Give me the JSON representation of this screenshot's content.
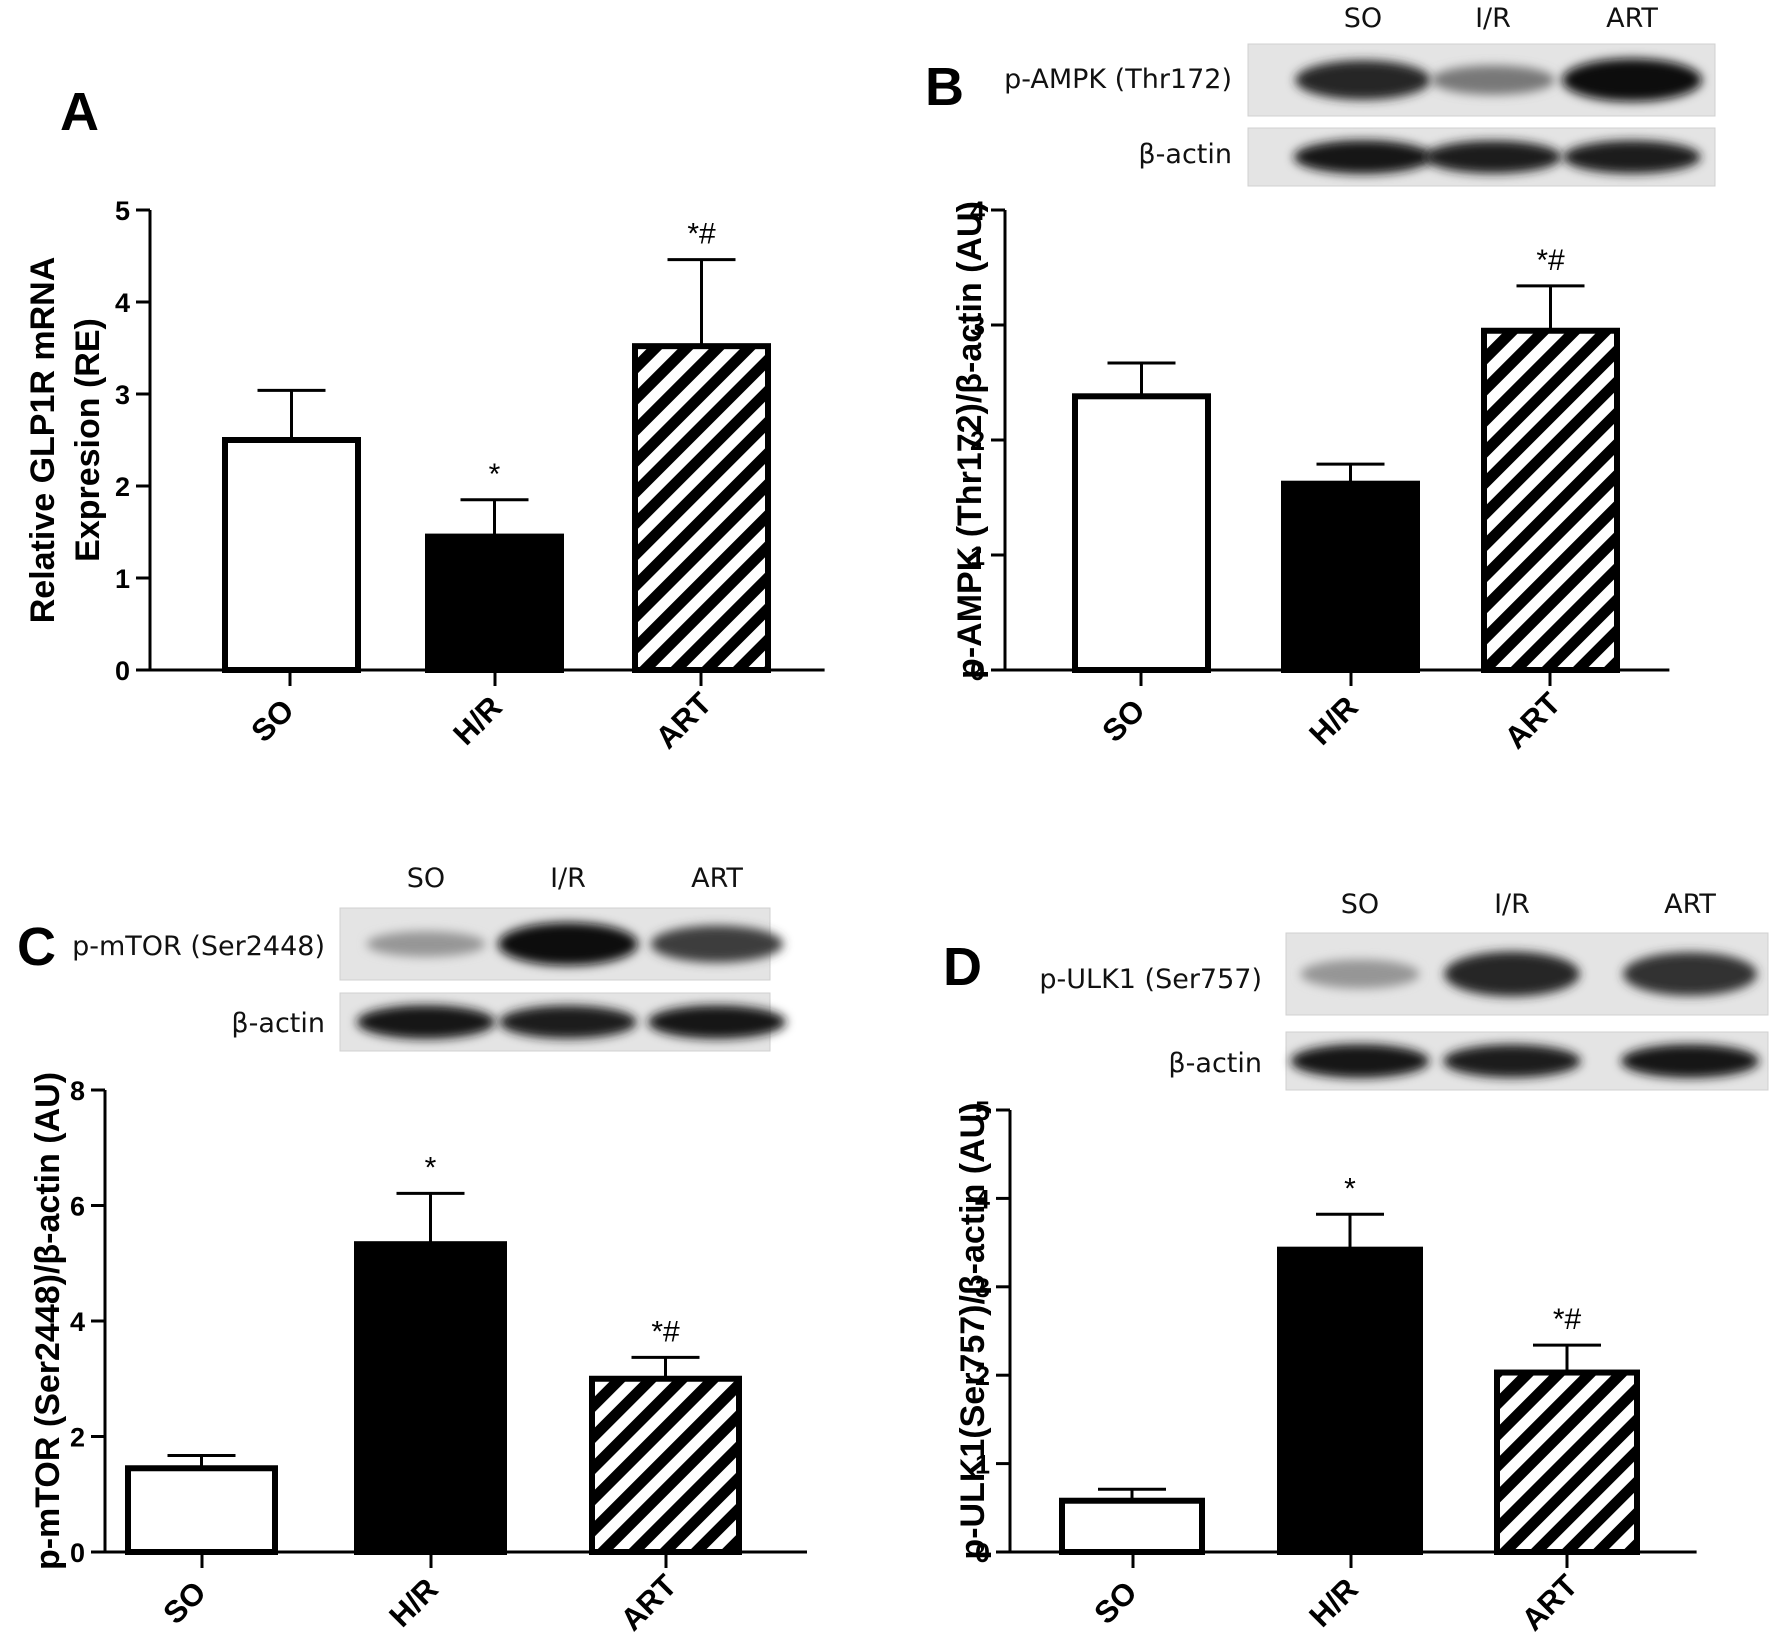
{
  "chart_data": [
    {
      "panel": "A",
      "type": "bar",
      "categories": [
        "SO",
        "H/R",
        "ART"
      ],
      "values": [
        2.5,
        1.45,
        3.52
      ],
      "errors": [
        0.54,
        0.4,
        0.94
      ],
      "annotations": [
        "",
        "*",
        "*#"
      ],
      "fills": [
        "white",
        "black",
        "hatch"
      ],
      "ylabel_lines": [
        "Relative GLP1R mRNA",
        "Expresion (RE)"
      ],
      "ylim": [
        0,
        5
      ],
      "yticks": [
        "0",
        "1",
        "2",
        "3",
        "4",
        "5"
      ],
      "blot": null
    },
    {
      "panel": "B",
      "type": "bar",
      "categories": [
        "SO",
        "H/R",
        "ART"
      ],
      "values": [
        2.38,
        1.62,
        2.95
      ],
      "errors": [
        0.29,
        0.17,
        0.39
      ],
      "annotations": [
        "",
        "",
        "*#"
      ],
      "fills": [
        "white",
        "black",
        "hatch"
      ],
      "ylabel_lines": [
        "p-AMPK (Thr172)/β-actin (AU)"
      ],
      "ylim": [
        0,
        4
      ],
      "yticks": [
        "0",
        "1",
        "2",
        "3",
        "4"
      ],
      "blot": {
        "lanes": [
          "SO",
          "I/R",
          "ART"
        ],
        "rows": [
          {
            "label": "p-AMPK (Thr172)",
            "intensity": [
              0.85,
              0.45,
              1.0
            ]
          },
          {
            "label": "β-actin",
            "intensity": [
              0.95,
              0.9,
              0.92
            ]
          }
        ]
      }
    },
    {
      "panel": "C",
      "type": "bar",
      "categories": [
        "SO",
        "H/R",
        "ART"
      ],
      "values": [
        1.45,
        5.33,
        3.0
      ],
      "errors": [
        0.22,
        0.88,
        0.37
      ],
      "annotations": [
        "",
        "*",
        "*#"
      ],
      "fills": [
        "white",
        "black",
        "hatch"
      ],
      "ylabel_lines": [
        "p-mTOR (Ser2448)/β-actin (AU)"
      ],
      "ylim": [
        0,
        8
      ],
      "yticks": [
        "0",
        "2",
        "4",
        "6",
        "8"
      ],
      "blot": {
        "lanes": [
          "SO",
          "I/R",
          "ART"
        ],
        "rows": [
          {
            "label": "p-mTOR (Ser2448)",
            "intensity": [
              0.3,
              1.0,
              0.75
            ]
          },
          {
            "label": "β-actin",
            "intensity": [
              0.95,
              0.92,
              0.94
            ]
          }
        ]
      }
    },
    {
      "panel": "D",
      "type": "bar",
      "categories": [
        "SO",
        "H/R",
        "ART"
      ],
      "values": [
        0.58,
        3.42,
        2.03
      ],
      "errors": [
        0.13,
        0.4,
        0.31
      ],
      "annotations": [
        "",
        "*",
        "*#"
      ],
      "fills": [
        "white",
        "black",
        "hatch"
      ],
      "ylabel_lines": [
        "p-ULK1(Ser757)/β-actin (AU)"
      ],
      "ylim": [
        0,
        5
      ],
      "yticks": [
        "0",
        "1",
        "2",
        "3",
        "4",
        "5"
      ],
      "blot": {
        "lanes": [
          "SO",
          "I/R",
          "ART"
        ],
        "rows": [
          {
            "label": "p-ULK1 (Ser757)",
            "intensity": [
              0.3,
              0.85,
              0.8
            ]
          },
          {
            "label": "β-actin",
            "intensity": [
              0.95,
              0.92,
              0.94
            ]
          }
        ]
      }
    }
  ]
}
